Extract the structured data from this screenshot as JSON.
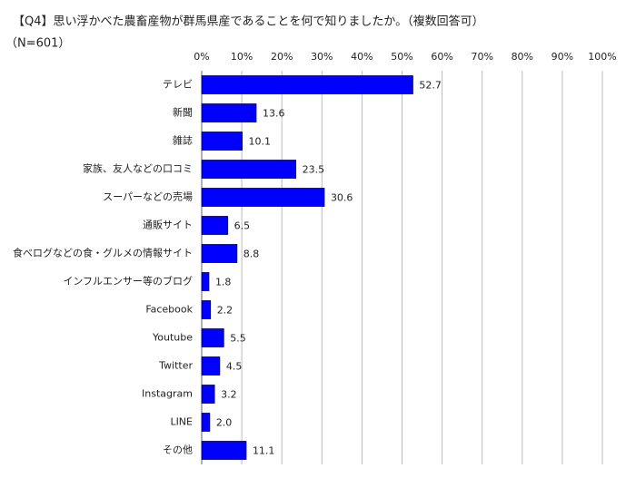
{
  "chart_data": {
    "type": "bar",
    "orientation": "horizontal",
    "title": "【Q4】思い浮かべた農畜産物が群馬県産であることを何で知りましたか。（複数回答可）",
    "subtitle": "（N=601）",
    "categories": [
      "テレビ",
      "新聞",
      "雑誌",
      "家族、友人などの口コミ",
      "スーパーなどの売場",
      "通販サイト",
      "食べログなどの食・グルメの情報サイト",
      "インフルエンサー等のブログ",
      "Facebook",
      "Youtube",
      "Twitter",
      "Instagram",
      "LINE",
      "その他"
    ],
    "values": [
      52.7,
      13.6,
      10.1,
      23.5,
      30.6,
      6.5,
      8.8,
      1.8,
      2.2,
      5.5,
      4.5,
      3.2,
      2.0,
      11.1
    ],
    "value_labels": [
      "52.7",
      "13.6",
      "10.1",
      "23.5",
      "30.6",
      "6.5",
      "8.8",
      "1.8",
      "2.2",
      "5.5",
      "4.5",
      "3.2",
      "2.0",
      "11.1"
    ],
    "color": "#0000ff",
    "xlim": [
      0,
      100
    ],
    "xticks": [
      {
        "value": 0,
        "label": "0%"
      },
      {
        "value": 10,
        "label": "10%"
      },
      {
        "value": 20,
        "label": "20%"
      },
      {
        "value": 30,
        "label": "30%"
      },
      {
        "value": 40,
        "label": "40%"
      },
      {
        "value": 50,
        "label": "50%"
      },
      {
        "value": 60,
        "label": "60%"
      },
      {
        "value": 70,
        "label": "70%"
      },
      {
        "value": 80,
        "label": "80%"
      },
      {
        "value": 90,
        "label": "90%"
      },
      {
        "value": 100,
        "label": "100%"
      }
    ],
    "grid": true
  }
}
